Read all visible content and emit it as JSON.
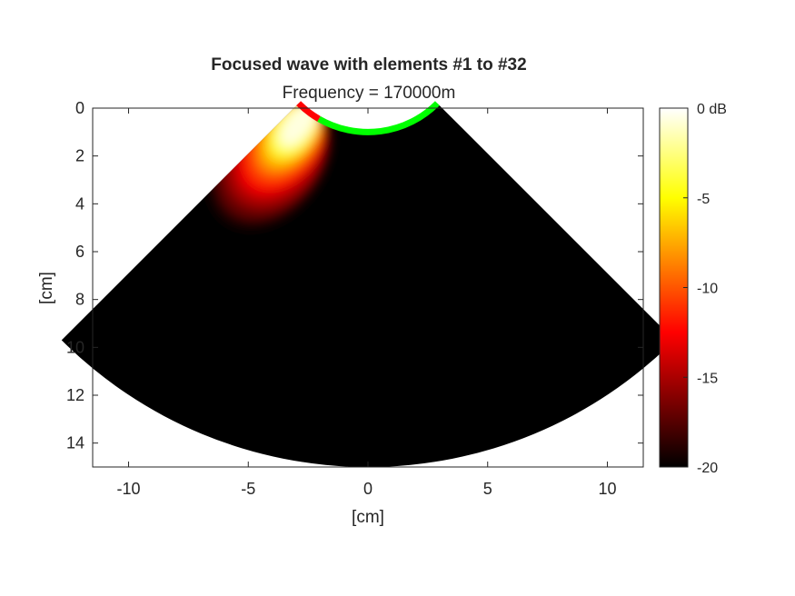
{
  "chart_data": {
    "type": "heatmap",
    "title": "Focused wave with elements #1 to #32",
    "subtitle": "Frequency = 170000m",
    "xlabel": "[cm]",
    "ylabel": "[cm]",
    "xlim": [
      -11.5,
      11.5
    ],
    "ylim": [
      0,
      15
    ],
    "y_reversed": true,
    "x_ticks": [
      -10,
      -5,
      0,
      5,
      10
    ],
    "x_tick_labels": [
      "-10",
      "-5",
      "0",
      "5",
      "10"
    ],
    "y_ticks": [
      0,
      2,
      4,
      6,
      8,
      10,
      12,
      14
    ],
    "y_tick_labels": [
      "0",
      "2",
      "4",
      "6",
      "8",
      "10",
      "12",
      "14"
    ],
    "colormap": "hot",
    "colorbar": {
      "range": [
        -20,
        0
      ],
      "ticks": [
        0,
        -5,
        -10,
        -15,
        -20
      ],
      "tick_labels": [
        "0 dB",
        "-5",
        "-10",
        "-15",
        "-20"
      ]
    },
    "probe": {
      "type": "convex",
      "radius_cm": 4.1,
      "apex_cm": [
        0,
        -3.1
      ],
      "span_deg": [
        -45,
        45
      ],
      "active_elements": "#1 to #32",
      "active_span_deg": [
        -45,
        -30
      ],
      "active_color": "#ff0000",
      "inactive_color": "#00ff00"
    },
    "sector": {
      "apex_cm": [
        0,
        -3.1
      ],
      "outer_radius_cm": 18.1,
      "span_deg": [
        -45,
        45
      ],
      "background_db": -20
    },
    "beam": {
      "angle_deg": -37.5,
      "peak_db": 0,
      "peak_range_cm": 1.2,
      "visible_extent_cm": 8.5
    }
  }
}
